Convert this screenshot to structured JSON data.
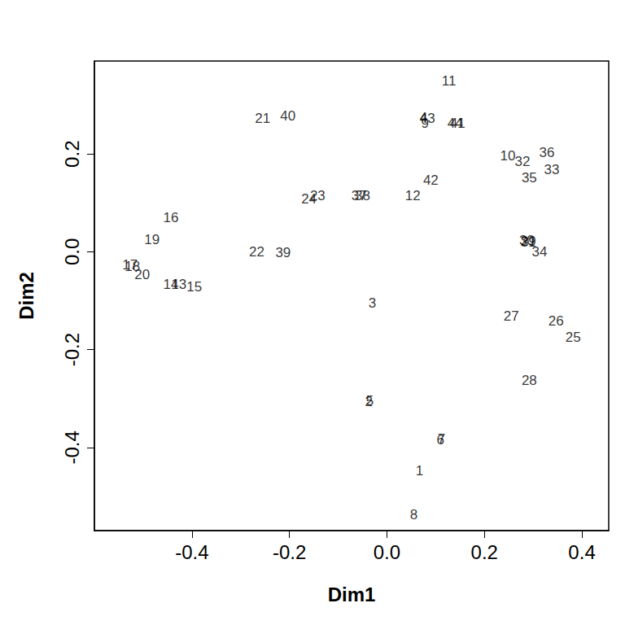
{
  "chart_data": {
    "type": "scatter",
    "marker": "text",
    "x_label": "Dim1",
    "y_label": "Dim2",
    "xlim": [
      -0.6,
      0.455
    ],
    "ylim": [
      -0.57,
      0.39
    ],
    "xticks": [
      -0.4,
      -0.2,
      {
        "value": 0,
        "label": "0.0"
      },
      0.2,
      0.4
    ],
    "yticks": [
      -0.4,
      -0.2,
      {
        "value": 0,
        "label": "0.0"
      },
      0.2
    ],
    "color": "#000000",
    "labels": [
      "1",
      "2",
      "3",
      "4",
      "5",
      "6",
      "7",
      "8",
      "9",
      "10",
      "11",
      "12",
      "13",
      "14",
      "15",
      "16",
      "17",
      "18",
      "19",
      "20",
      "21",
      "22",
      "23",
      "24",
      "25",
      "26",
      "27",
      "28",
      "29",
      "30",
      "31",
      "32",
      "33",
      "34",
      "35",
      "36",
      "37",
      "38",
      "39",
      "40",
      "41",
      "42",
      "43",
      "44"
    ],
    "x": [
      0.067,
      -0.037,
      -0.03,
      0.075,
      -0.035,
      0.11,
      0.112,
      0.055,
      0.078,
      0.248,
      0.127,
      0.053,
      -0.427,
      -0.443,
      -0.395,
      -0.443,
      -0.527,
      -0.522,
      -0.482,
      -0.502,
      -0.255,
      -0.267,
      -0.142,
      -0.16,
      0.382,
      0.347,
      0.255,
      0.292,
      0.29,
      0.287,
      0.29,
      0.278,
      0.338,
      0.313,
      0.292,
      0.328,
      -0.057,
      -0.05,
      -0.213,
      -0.203,
      0.145,
      0.09,
      0.083,
      0.14
    ],
    "y": [
      -0.447,
      -0.307,
      -0.105,
      0.275,
      -0.305,
      -0.385,
      -0.383,
      -0.537,
      0.263,
      0.197,
      0.35,
      0.115,
      -0.067,
      -0.067,
      -0.072,
      0.07,
      -0.027,
      -0.03,
      0.025,
      -0.047,
      0.272,
      0.0,
      0.115,
      0.108,
      -0.175,
      -0.142,
      -0.132,
      -0.263,
      0.022,
      0.023,
      0.02,
      0.185,
      0.168,
      0.0,
      0.152,
      0.202,
      0.115,
      0.115,
      -0.002,
      0.278,
      0.263,
      0.147,
      0.273,
      0.263
    ]
  }
}
